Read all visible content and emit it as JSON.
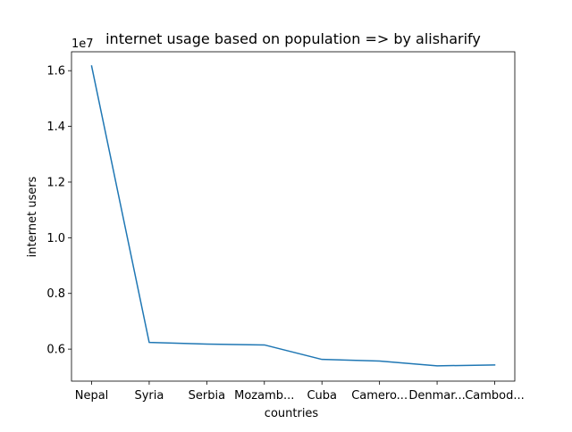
{
  "chart_data": {
    "type": "line",
    "title": "internet usage based on population => by alisharify",
    "xlabel": "countries",
    "ylabel": "internet users",
    "y_offset_label": "1e7",
    "categories": [
      "Nepal",
      "Syria",
      "Serbia",
      "Mozamb...",
      "Cuba",
      "Camero...",
      "Denmar...",
      "Cambod..."
    ],
    "y_ticks": [
      "0.6",
      "0.8",
      "1.0",
      "1.2",
      "1.4",
      "1.6"
    ],
    "y_tick_values": [
      0.6,
      0.8,
      1.0,
      1.2,
      1.4,
      1.6
    ],
    "ylim": [
      0.485,
      1.668
    ],
    "grid": false,
    "series": [
      {
        "values": [
          16.17,
          6.24,
          6.18,
          6.15,
          5.63,
          5.57,
          5.4,
          5.43
        ],
        "color": "#1f77b4"
      }
    ]
  }
}
